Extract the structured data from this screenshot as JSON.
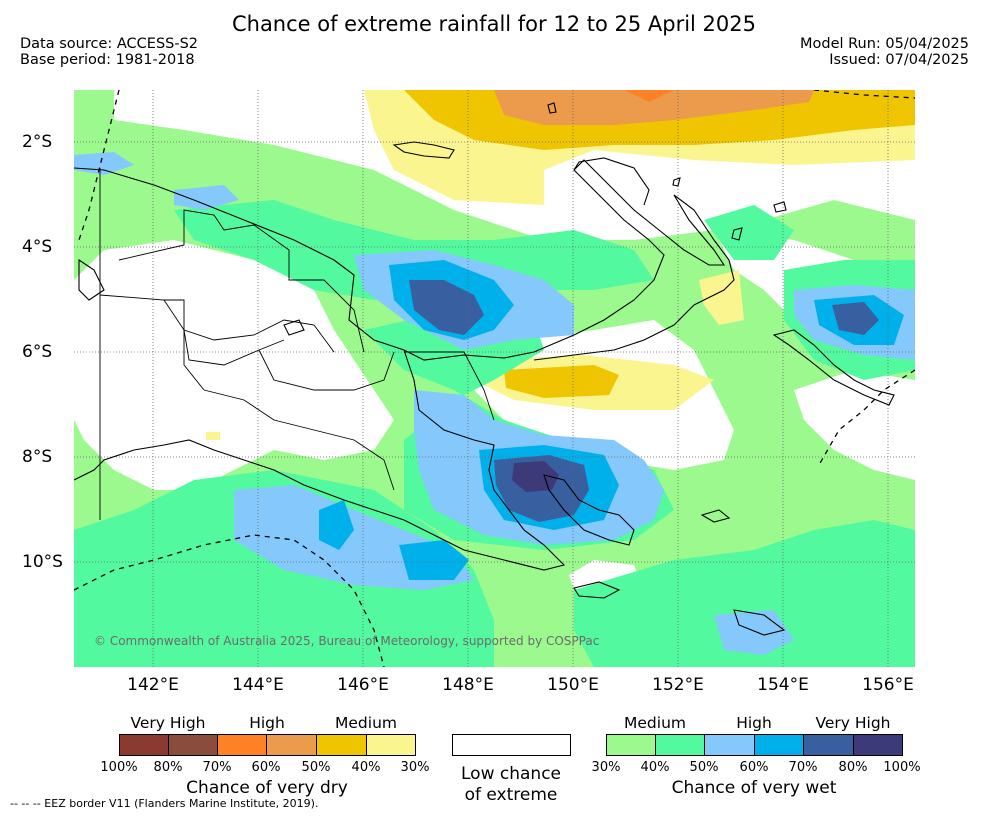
{
  "title": "Chance of extreme rainfall for 12 to 25 April 2025",
  "meta": {
    "data_source": "Data source: ACCESS-S2",
    "base_period": "Base period: 1981-2018",
    "model_run": "Model Run: 05/04/2025",
    "issued": "Issued: 07/04/2025"
  },
  "axes": {
    "lat_ticks": [
      "2°S",
      "4°S",
      "6°S",
      "8°S",
      "10°S"
    ],
    "lon_ticks": [
      "142°E",
      "144°E",
      "146°E",
      "148°E",
      "150°E",
      "152°E",
      "154°E",
      "156°E"
    ]
  },
  "legend": {
    "dry": {
      "categories": [
        "Very High",
        "High",
        "Medium"
      ],
      "percent_labels": [
        "100%",
        "80%",
        "70%",
        "60%",
        "50%",
        "40%",
        "30%"
      ],
      "colors": [
        "#8b3a2f",
        "#8b4c3b",
        "#ff8125",
        "#ec9a4b",
        "#eec500",
        "#fbf58f"
      ],
      "caption": "Chance of very dry"
    },
    "neutral": {
      "color": "#ffffff",
      "caption_line1": "Low chance",
      "caption_line2": "of extreme"
    },
    "wet": {
      "categories": [
        "Medium",
        "High",
        "Very High"
      ],
      "percent_labels": [
        "30%",
        "40%",
        "50%",
        "60%",
        "70%",
        "80%",
        "100%"
      ],
      "colors": [
        "#9bf98e",
        "#52f99f",
        "#85c8fc",
        "#00b0eb",
        "#385f9f",
        "#3d3a7a"
      ],
      "caption": "Chance of very wet"
    }
  },
  "copyright": "© Commonwealth of Australia 2025, Bureau of Meteorology, supported by COSPPac",
  "footnote": "-- -- -- EEZ border V11 (Flanders Marine Institute, 2019)."
}
